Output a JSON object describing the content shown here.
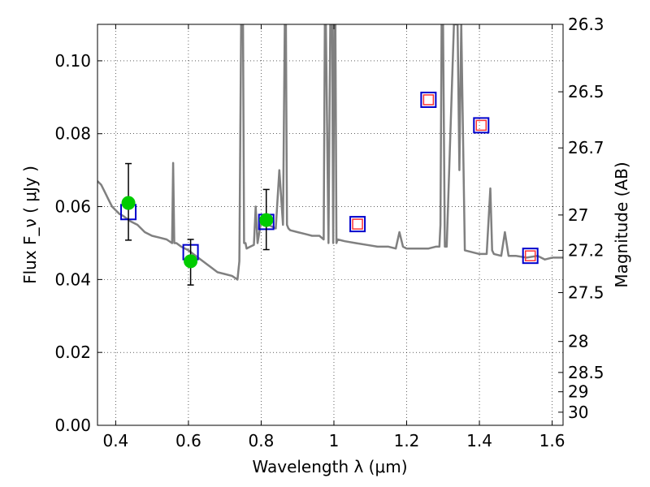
{
  "chart_data": {
    "type": "scatter",
    "xlabel": "Wavelength  λ (μm)",
    "ylabel_left": "Flux  F_ν  ( μJy )",
    "ylabel_right": "Magnitude (AB)",
    "xlim": [
      0.35,
      1.63
    ],
    "ylim": [
      0.0,
      0.11
    ],
    "grid": true,
    "x_ticks": [
      0.4,
      0.6,
      0.8,
      1.0,
      1.2,
      1.4,
      1.6
    ],
    "x_tick_labels": [
      "0.4",
      "0.6",
      "0.8",
      "1",
      "1.2",
      "1.4",
      "1.6"
    ],
    "y_ticks": [
      0.0,
      0.02,
      0.04,
      0.06,
      0.08,
      0.1
    ],
    "y_tick_labels": [
      "0.00",
      "0.02",
      "0.04",
      "0.06",
      "0.08",
      "0.10"
    ],
    "right_ticks": [
      {
        "label": "26.3",
        "flux": 0.11
      },
      {
        "label": "26.5",
        "flux": 0.0915
      },
      {
        "label": "26.7",
        "flux": 0.0761
      },
      {
        "label": "27",
        "flux": 0.0577
      },
      {
        "label": "27.2",
        "flux": 0.048
      },
      {
        "label": "27.5",
        "flux": 0.0364
      },
      {
        "label": "28",
        "flux": 0.023
      },
      {
        "label": "28.5",
        "flux": 0.0145
      },
      {
        "label": "29",
        "flux": 0.0092
      },
      {
        "label": "30",
        "flux": 0.0036
      }
    ],
    "series": [
      {
        "type": "line",
        "color": "#808080",
        "x": [
          0.35,
          0.36,
          0.37,
          0.38,
          0.39,
          0.4,
          0.41,
          0.42,
          0.44,
          0.46,
          0.48,
          0.5,
          0.52,
          0.54,
          0.555,
          0.558,
          0.561,
          0.564,
          0.567,
          0.58,
          0.6,
          0.62,
          0.64,
          0.66,
          0.68,
          0.7,
          0.72,
          0.735,
          0.74,
          0.745,
          0.75,
          0.753,
          0.757,
          0.76,
          0.77,
          0.78,
          0.785,
          0.79,
          0.8,
          0.82,
          0.84,
          0.85,
          0.86,
          0.865,
          0.868,
          0.871,
          0.875,
          0.88,
          0.9,
          0.92,
          0.94,
          0.96,
          0.972,
          0.975,
          0.978,
          0.985,
          0.99,
          0.995,
          0.998,
          1.001,
          1.004,
          1.007,
          1.01,
          1.03,
          1.06,
          1.09,
          1.12,
          1.15,
          1.17,
          1.18,
          1.19,
          1.2,
          1.23,
          1.26,
          1.28,
          1.29,
          1.293,
          1.296,
          1.3,
          1.305,
          1.31,
          1.33,
          1.34,
          1.345,
          1.35,
          1.36,
          1.4,
          1.42,
          1.43,
          1.435,
          1.44,
          1.46,
          1.47,
          1.48,
          1.5,
          1.53,
          1.56,
          1.58,
          1.6,
          1.63
        ],
        "y": [
          0.067,
          0.066,
          0.064,
          0.062,
          0.06,
          0.059,
          0.058,
          0.0575,
          0.056,
          0.055,
          0.053,
          0.052,
          0.0515,
          0.051,
          0.05,
          0.072,
          0.05,
          0.05,
          0.05,
          0.049,
          0.048,
          0.0465,
          0.045,
          0.0435,
          0.042,
          0.0415,
          0.041,
          0.04,
          0.045,
          0.11,
          0.11,
          0.05,
          0.05,
          0.0485,
          0.049,
          0.0495,
          0.06,
          0.05,
          0.056,
          0.055,
          0.054,
          0.07,
          0.055,
          0.11,
          0.11,
          0.055,
          0.054,
          0.0535,
          0.053,
          0.0525,
          0.052,
          0.052,
          0.051,
          0.11,
          0.11,
          0.05,
          0.11,
          0.11,
          0.05,
          0.11,
          0.11,
          0.05,
          0.051,
          0.0505,
          0.05,
          0.0495,
          0.049,
          0.049,
          0.0485,
          0.053,
          0.049,
          0.0485,
          0.0485,
          0.0485,
          0.049,
          0.049,
          0.055,
          0.11,
          0.11,
          0.049,
          0.049,
          0.11,
          0.11,
          0.07,
          0.11,
          0.048,
          0.047,
          0.047,
          0.065,
          0.048,
          0.047,
          0.0465,
          0.053,
          0.0465,
          0.0465,
          0.046,
          0.0465,
          0.0455,
          0.046,
          0.046
        ]
      },
      {
        "type": "square",
        "edgecolor": "#0000cc",
        "points": [
          {
            "x": 0.435,
            "y": 0.0585
          },
          {
            "x": 0.606,
            "y": 0.0475
          },
          {
            "x": 0.814,
            "y": 0.0558
          }
        ]
      },
      {
        "type": "square",
        "edgecolor": "#0000cc",
        "inner": "#ff3333",
        "points": [
          {
            "x": 1.065,
            "y": 0.0552
          },
          {
            "x": 1.26,
            "y": 0.0893
          },
          {
            "x": 1.405,
            "y": 0.0823
          },
          {
            "x": 1.54,
            "y": 0.0465
          }
        ]
      },
      {
        "type": "errorbar",
        "color": "#00cc00",
        "points": [
          {
            "x": 0.435,
            "y": 0.061,
            "yerr": [
              0.0508,
              0.0718
            ]
          },
          {
            "x": 0.606,
            "y": 0.045,
            "yerr": [
              0.0385,
              0.051
            ]
          },
          {
            "x": 0.814,
            "y": 0.0563,
            "yerr": [
              0.0482,
              0.0647
            ]
          }
        ]
      }
    ]
  }
}
